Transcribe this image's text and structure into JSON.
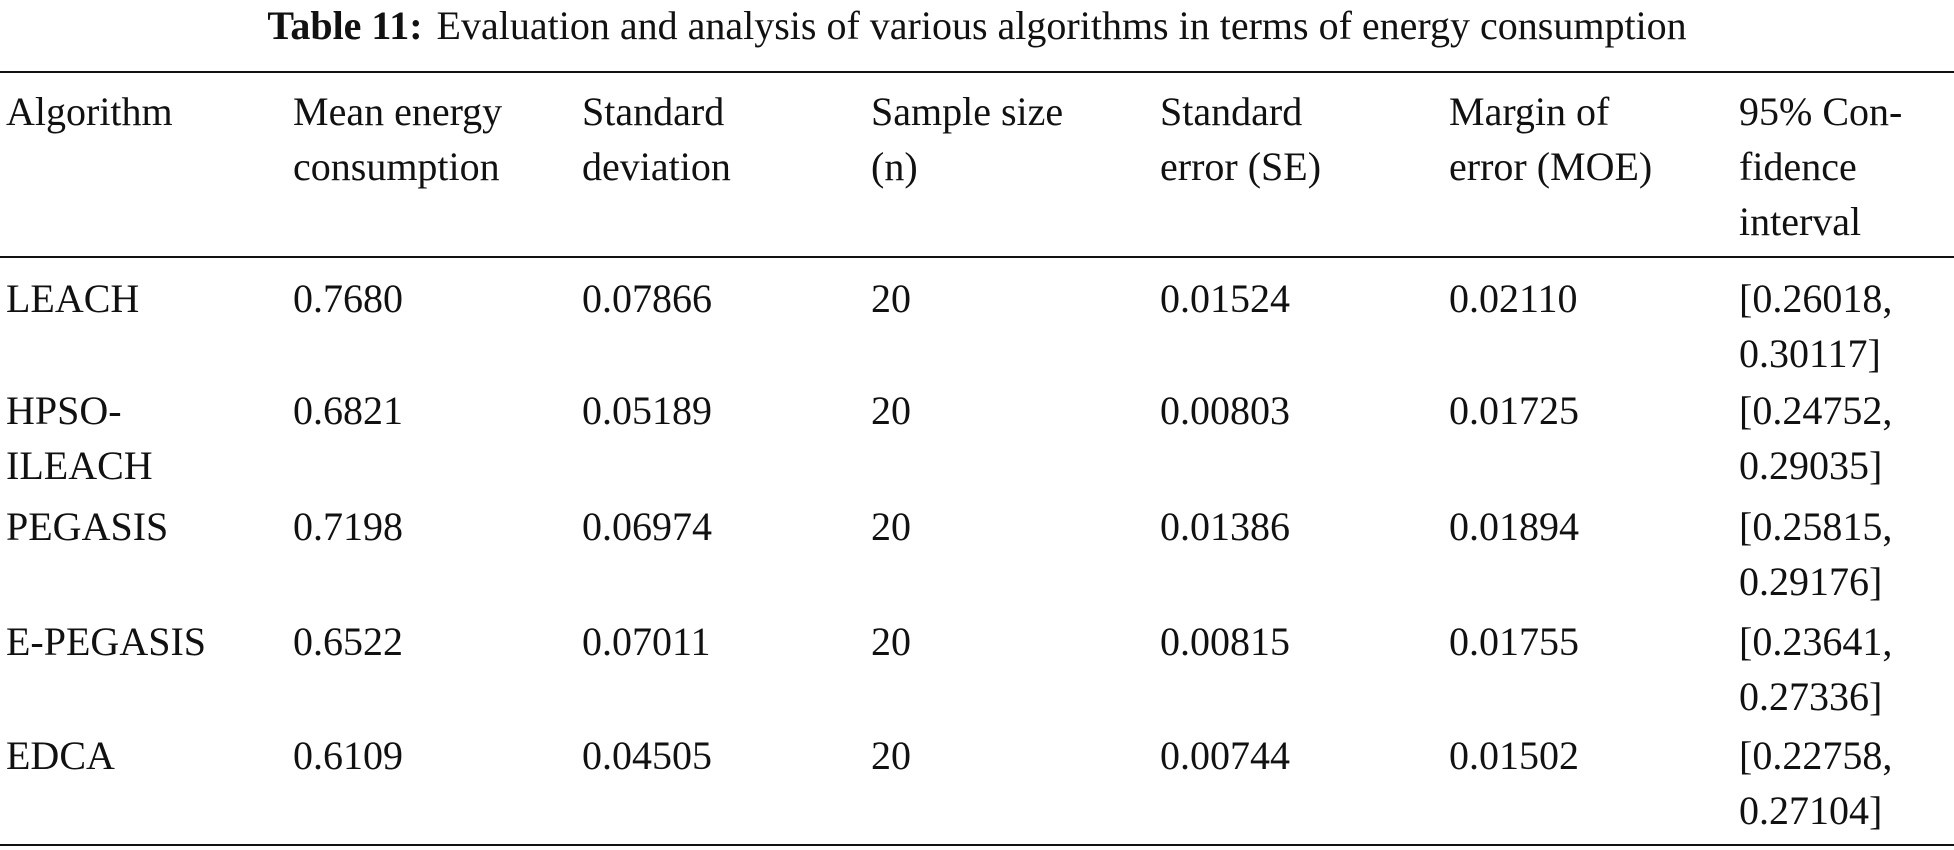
{
  "caption": {
    "label": "Table 11:",
    "text": "Evaluation and analysis of various algorithms in terms of energy consumption"
  },
  "table": {
    "header": [
      [
        "Algorithm"
      ],
      [
        "Mean energy",
        "consumption"
      ],
      [
        "Standard",
        "deviation"
      ],
      [
        "Sample size",
        "(n)"
      ],
      [
        "Standard",
        "error (SE)"
      ],
      [
        "Margin of",
        "error (MOE)"
      ],
      [
        "95% Con-",
        "fidence",
        "interval"
      ]
    ],
    "rows": [
      [
        [
          "LEACH"
        ],
        [
          "0.7680"
        ],
        [
          "0.07866"
        ],
        [
          "20"
        ],
        [
          "0.01524"
        ],
        [
          "0.02110"
        ],
        [
          "[0.26018,",
          "0.30117]"
        ]
      ],
      [
        [
          "HPSO-",
          "ILEACH"
        ],
        [
          "0.6821"
        ],
        [
          "0.05189"
        ],
        [
          "20"
        ],
        [
          "0.00803"
        ],
        [
          "0.01725"
        ],
        [
          "[0.24752,",
          "0.29035]"
        ]
      ],
      [
        [
          "PEGASIS"
        ],
        [
          "0.7198"
        ],
        [
          "0.06974"
        ],
        [
          "20"
        ],
        [
          "0.01386"
        ],
        [
          "0.01894"
        ],
        [
          "[0.25815,",
          "0.29176]"
        ]
      ],
      [
        [
          "E-PEGASIS"
        ],
        [
          "0.6522"
        ],
        [
          "0.07011"
        ],
        [
          "20"
        ],
        [
          "0.00815"
        ],
        [
          "0.01755"
        ],
        [
          "[0.23641,",
          "0.27336]"
        ]
      ],
      [
        [
          "EDCA"
        ],
        [
          "0.6109"
        ],
        [
          "0.04505"
        ],
        [
          "20"
        ],
        [
          "0.00744"
        ],
        [
          "0.01502"
        ],
        [
          "[0.22758,",
          "0.27104]"
        ]
      ]
    ]
  }
}
